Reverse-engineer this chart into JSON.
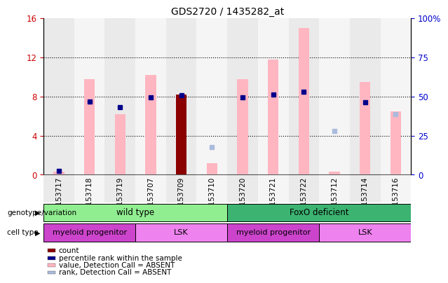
{
  "title": "GDS2720 / 1435282_at",
  "samples": [
    "GSM153717",
    "GSM153718",
    "GSM153719",
    "GSM153707",
    "GSM153709",
    "GSM153710",
    "GSM153720",
    "GSM153721",
    "GSM153722",
    "GSM153712",
    "GSM153714",
    "GSM153716"
  ],
  "pink_bars": [
    0.3,
    9.8,
    6.2,
    10.2,
    8.2,
    1.2,
    9.8,
    11.8,
    15.0,
    0.3,
    9.5,
    6.5
  ],
  "dark_red_bar_idx": 4,
  "dark_red_value": 8.2,
  "blue_squares_y": [
    0.4,
    7.5,
    6.9,
    7.9,
    8.1,
    null,
    7.9,
    8.2,
    8.5,
    null,
    7.4,
    null
  ],
  "light_blue_squares_y": [
    null,
    null,
    null,
    null,
    null,
    2.8,
    null,
    null,
    null,
    4.5,
    null,
    6.2
  ],
  "ylim": [
    0,
    16
  ],
  "yticks_left": [
    0,
    4,
    8,
    12,
    16
  ],
  "ytick_labels_left": [
    "0",
    "4",
    "8",
    "12",
    "16"
  ],
  "ytick_labels_right": [
    "0",
    "25",
    "50",
    "75",
    "100%"
  ],
  "genotype_groups": [
    {
      "label": "wild type",
      "start": 0,
      "end": 5,
      "color": "#90EE90"
    },
    {
      "label": "FoxO deficient",
      "start": 6,
      "end": 11,
      "color": "#3CB371"
    }
  ],
  "cell_type_groups": [
    {
      "label": "myeloid progenitor",
      "start": 0,
      "end": 2,
      "color": "#CC44CC"
    },
    {
      "label": "LSK",
      "start": 3,
      "end": 5,
      "color": "#EE82EE"
    },
    {
      "label": "myeloid progenitor",
      "start": 6,
      "end": 8,
      "color": "#CC44CC"
    },
    {
      "label": "LSK",
      "start": 9,
      "end": 11,
      "color": "#EE82EE"
    }
  ],
  "legend_items": [
    {
      "color": "#8B0000",
      "label": "count"
    },
    {
      "color": "#00008B",
      "label": "percentile rank within the sample"
    },
    {
      "color": "#FFB6C1",
      "label": "value, Detection Call = ABSENT"
    },
    {
      "color": "#AABBDD",
      "label": "rank, Detection Call = ABSENT"
    }
  ],
  "bar_width": 0.35,
  "tick_color_left": "#CC0000",
  "tick_color_right": "#0000CC",
  "col_bg_even": "#CCCCCC",
  "col_bg_odd": "#E8E8E8"
}
